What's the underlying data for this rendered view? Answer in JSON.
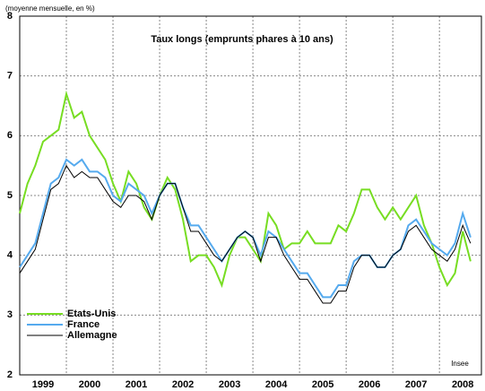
{
  "chart_data": {
    "type": "line",
    "title": "Taux longs (emprunts phares à 10 ans)",
    "subtitle": "(moyenne mensuelle, en %)",
    "annotation": "Insee",
    "x": [
      1999,
      1999.167,
      1999.333,
      1999.5,
      1999.667,
      1999.833,
      2000,
      2000.167,
      2000.333,
      2000.5,
      2000.667,
      2000.833,
      2001,
      2001.167,
      2001.333,
      2001.5,
      2001.667,
      2001.833,
      2002,
      2002.167,
      2002.333,
      2002.5,
      2002.667,
      2002.833,
      2003,
      2003.167,
      2003.333,
      2003.5,
      2003.667,
      2003.833,
      2004,
      2004.167,
      2004.333,
      2004.5,
      2004.667,
      2004.833,
      2005,
      2005.167,
      2005.333,
      2005.5,
      2005.667,
      2005.833,
      2006,
      2006.167,
      2006.333,
      2006.5,
      2006.667,
      2006.833,
      2007,
      2007.167,
      2007.333,
      2007.5,
      2007.667,
      2007.833,
      2008,
      2008.167,
      2008.333,
      2008.5,
      2008.667
    ],
    "series": [
      {
        "name": "Etats-Unis",
        "color": "#77dd22",
        "width": 2,
        "values": [
          4.7,
          5.2,
          5.5,
          5.9,
          6.0,
          6.1,
          6.7,
          6.3,
          6.4,
          6.0,
          5.8,
          5.6,
          5.2,
          4.9,
          5.4,
          5.2,
          4.8,
          4.6,
          5.0,
          5.3,
          5.1,
          4.6,
          3.9,
          4.0,
          4.0,
          3.8,
          3.5,
          4.0,
          4.3,
          4.3,
          4.1,
          3.9,
          4.7,
          4.5,
          4.1,
          4.2,
          4.2,
          4.4,
          4.2,
          4.2,
          4.2,
          4.5,
          4.4,
          4.7,
          5.1,
          5.1,
          4.8,
          4.6,
          4.8,
          4.6,
          4.8,
          5.0,
          4.5,
          4.2,
          3.8,
          3.5,
          3.7,
          4.4,
          3.9
        ]
      },
      {
        "name": "France",
        "color": "#55aaee",
        "width": 2,
        "values": [
          3.8,
          4.0,
          4.2,
          4.7,
          5.2,
          5.3,
          5.6,
          5.5,
          5.6,
          5.4,
          5.4,
          5.3,
          5.0,
          4.9,
          5.2,
          5.1,
          5.0,
          4.7,
          5.0,
          5.2,
          5.2,
          4.8,
          4.5,
          4.5,
          4.3,
          4.1,
          3.9,
          4.1,
          4.3,
          4.4,
          4.3,
          4.0,
          4.4,
          4.3,
          4.1,
          3.9,
          3.7,
          3.7,
          3.5,
          3.3,
          3.3,
          3.5,
          3.5,
          3.9,
          4.0,
          4.0,
          3.8,
          3.8,
          4.0,
          4.1,
          4.5,
          4.6,
          4.4,
          4.2,
          4.1,
          4.0,
          4.2,
          4.7,
          4.3
        ]
      },
      {
        "name": "Allemagne",
        "color": "#000000",
        "width": 1,
        "values": [
          3.7,
          3.9,
          4.1,
          4.6,
          5.1,
          5.2,
          5.5,
          5.3,
          5.4,
          5.3,
          5.3,
          5.1,
          4.9,
          4.8,
          5.0,
          5.0,
          4.9,
          4.6,
          5.0,
          5.2,
          5.2,
          4.8,
          4.4,
          4.4,
          4.2,
          4.0,
          3.9,
          4.1,
          4.3,
          4.4,
          4.3,
          3.9,
          4.3,
          4.3,
          4.0,
          3.8,
          3.6,
          3.6,
          3.4,
          3.2,
          3.2,
          3.4,
          3.4,
          3.8,
          4.0,
          4.0,
          3.8,
          3.8,
          4.0,
          4.1,
          4.4,
          4.5,
          4.3,
          4.1,
          4.0,
          3.9,
          4.1,
          4.5,
          4.2
        ]
      }
    ],
    "xlim": [
      1999,
      2008.9
    ],
    "xticks": [
      {
        "value": 1999.5,
        "label": "1999"
      },
      {
        "value": 2000.5,
        "label": "2000"
      },
      {
        "value": 2001.5,
        "label": "2001"
      },
      {
        "value": 2002.5,
        "label": "2002"
      },
      {
        "value": 2003.5,
        "label": "2003"
      },
      {
        "value": 2004.5,
        "label": "2004"
      },
      {
        "value": 2005.5,
        "label": "2005"
      },
      {
        "value": 2006.5,
        "label": "2006"
      },
      {
        "value": 2007.5,
        "label": "2007"
      },
      {
        "value": 2008.5,
        "label": "2008"
      }
    ],
    "xgrid": [
      2000,
      2001,
      2002,
      2003,
      2004,
      2005,
      2006,
      2007,
      2008
    ],
    "ylim": [
      2,
      8
    ],
    "yticks": [
      2,
      3,
      4,
      5,
      6,
      7,
      8
    ],
    "grid": true,
    "legend": "lower left"
  }
}
